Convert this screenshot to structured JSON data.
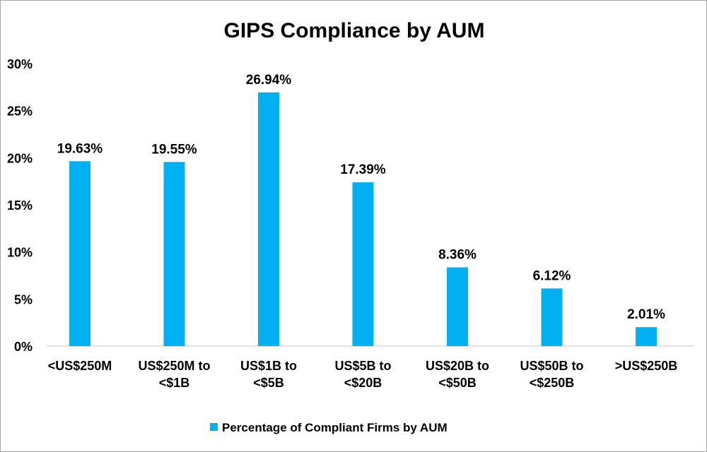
{
  "chart_data": {
    "type": "bar",
    "title": "GIPS Compliance by AUM",
    "categories": [
      [
        "<US$250M"
      ],
      [
        "US$250M to",
        "<$1B"
      ],
      [
        "US$1B to",
        "<$5B"
      ],
      [
        "US$5B to",
        "<$20B"
      ],
      [
        "US$20B to",
        "<$50B"
      ],
      [
        "US$50B to",
        "<$250B"
      ],
      [
        ">US$250B"
      ]
    ],
    "series": [
      {
        "name": "Percentage of Compliant Firms by AUM",
        "values": [
          19.63,
          19.55,
          26.94,
          17.39,
          8.36,
          6.12,
          2.01
        ],
        "color": "#00b0f0"
      }
    ],
    "data_labels": [
      "19.63%",
      "19.55%",
      "26.94%",
      "17.39%",
      "8.36%",
      "6.12%",
      "2.01%"
    ],
    "ylim": [
      0,
      30
    ],
    "yticks": [
      "0%",
      "5%",
      "10%",
      "15%",
      "20%",
      "25%",
      "30%"
    ],
    "ytick_values": [
      0,
      5,
      10,
      15,
      20,
      25,
      30
    ],
    "xlabel": "",
    "ylabel": "",
    "grid": false,
    "legend": "bottom"
  }
}
